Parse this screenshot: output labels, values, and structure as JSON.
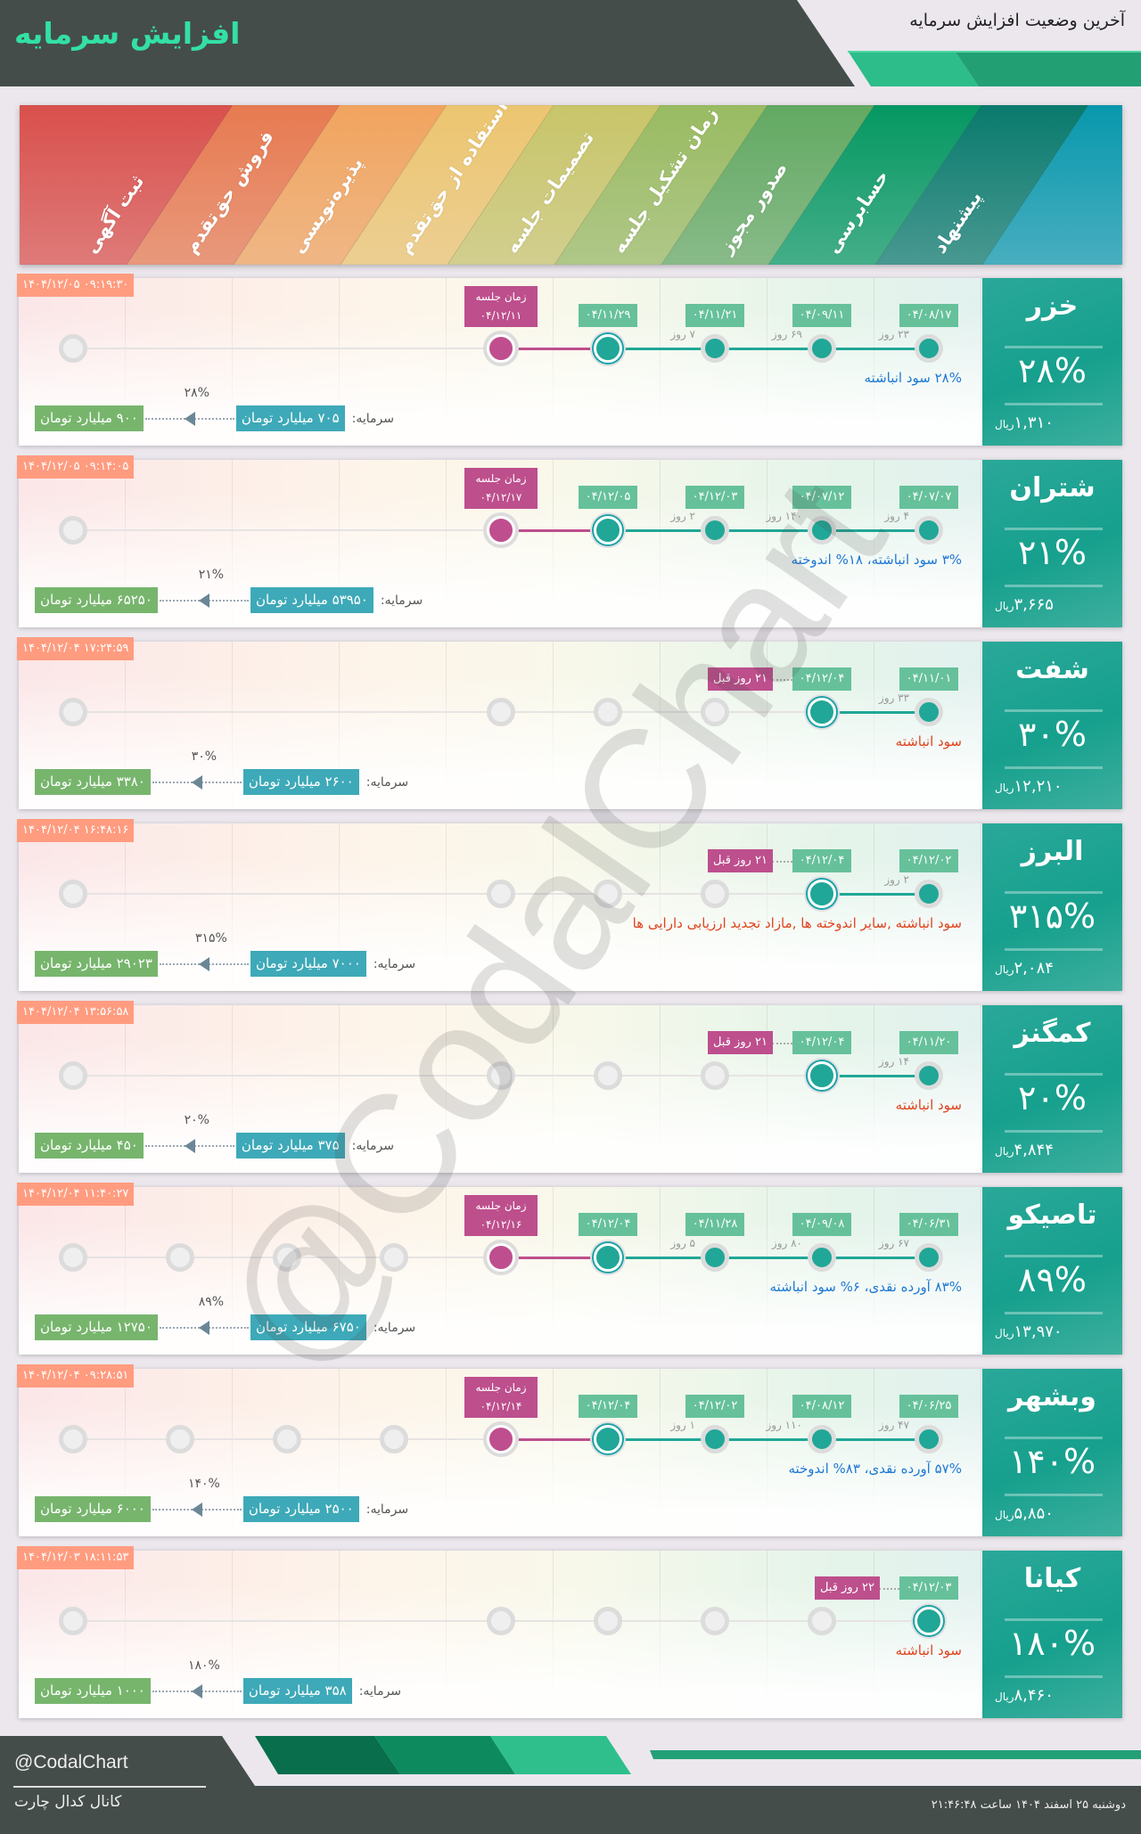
{
  "header": {
    "title": "افزایش سرمایه",
    "subtitle": "آخرین وضعیت افزایش سرمایه"
  },
  "stages": [
    {
      "label": "ثبت آگهی",
      "color": "#d9504c"
    },
    {
      "label": "فروش حق‌تقدم",
      "color": "#e77a50"
    },
    {
      "label": "پذیره‌نویسی",
      "color": "#f1a45e"
    },
    {
      "label": "استفاده از حق‌تقدم",
      "color": "#ecc56f"
    },
    {
      "label": "تصمیمات جلسه",
      "color": "#c8c56a"
    },
    {
      "label": "زمان تشکیل جلسه",
      "color": "#99bb61"
    },
    {
      "label": "صدور مجوز",
      "color": "#62a962"
    },
    {
      "label": "حسابرسی",
      "color": "#049862"
    },
    {
      "label": "پیشنهاد",
      "color": "#097a6d"
    },
    {
      "label": "",
      "color": "#0898ad"
    }
  ],
  "labels": {
    "capital": "سرمایه:",
    "rial": "ریال",
    "meeting": "زمان جلسه"
  },
  "colors": {
    "done": "#21a797",
    "meeting": "#bd4f8d",
    "desc_blue": "#1e78d4",
    "desc_red": "#e0441e",
    "timestamp": "#ff9c80"
  },
  "cards": [
    {
      "name": "خزر",
      "percent": "۲۸%",
      "price": "۱,۳۱۰",
      "timestamp": "۱۴۰۴/۱۲/۰۵ ۰۹:۱۹:۳۰",
      "nodes": [
        {
          "state": "done",
          "date": "۰۴/۰۸/۱۷",
          "gap": "۲۳ روز"
        },
        {
          "state": "done",
          "date": "۰۴/۰۹/۱۱",
          "gap": "۶۹ روز"
        },
        {
          "state": "done",
          "date": "۰۴/۱۱/۲۱",
          "gap": "۷ روز"
        },
        {
          "state": "current",
          "date": "۰۴/۱۱/۲۹"
        },
        {
          "state": "meeting",
          "date": "۰۴/۱۲/۱۱"
        },
        {
          "state": "none"
        },
        {
          "state": "none"
        },
        {
          "state": "none"
        },
        {
          "state": "pending"
        }
      ],
      "description": "۲۸% سود انباشته",
      "desc_color": "blue",
      "capital": "۷۰۵ میلیارد تومان",
      "increase": "۲۸%",
      "target": "۹۰۰ میلیارد تومان"
    },
    {
      "name": "شتران",
      "percent": "۲۱%",
      "price": "۳,۶۶۵",
      "timestamp": "۱۴۰۴/۱۲/۰۵ ۰۹:۱۴:۰۵",
      "nodes": [
        {
          "state": "done",
          "date": "۰۴/۰۷/۰۷",
          "gap": "۴ روز"
        },
        {
          "state": "done",
          "date": "۰۴/۰۷/۱۲",
          "gap": "۱۴۰ روز"
        },
        {
          "state": "done",
          "date": "۰۴/۱۲/۰۳",
          "gap": "۲ روز"
        },
        {
          "state": "current",
          "date": "۰۴/۱۲/۰۵"
        },
        {
          "state": "meeting",
          "date": "۰۴/۱۲/۱۷"
        },
        {
          "state": "none"
        },
        {
          "state": "none"
        },
        {
          "state": "none"
        },
        {
          "state": "pending"
        }
      ],
      "description": "۳% سود انباشته، ۱۸% اندوخته",
      "desc_color": "blue",
      "capital": "۵۳۹۵۰ میلیارد تومان",
      "increase": "۲۱%",
      "target": "۶۵۲۵۰ میلیارد تومان"
    },
    {
      "name": "شفت",
      "percent": "۳۰%",
      "price": "۱۲,۲۱۰",
      "timestamp": "۱۴۰۴/۱۲/۰۴ ۱۷:۲۴:۵۹",
      "nodes": [
        {
          "state": "done",
          "date": "۰۴/۱۱/۰۱",
          "gap": "۳۳ روز"
        },
        {
          "state": "current",
          "date": "۰۴/۱۲/۰۴",
          "badge": "۲۱ روز قبل"
        },
        {
          "state": "pending"
        },
        {
          "state": "pending"
        },
        {
          "state": "pending"
        },
        {
          "state": "none"
        },
        {
          "state": "none"
        },
        {
          "state": "none"
        },
        {
          "state": "pending"
        }
      ],
      "description": "سود انباشته",
      "desc_color": "red",
      "capital": "۲۶۰۰ میلیارد تومان",
      "increase": "۳۰%",
      "target": "۳۳۸۰ میلیارد تومان"
    },
    {
      "name": "البرز",
      "percent": "۳۱۵%",
      "price": "۲,۰۸۴",
      "timestamp": "۱۴۰۴/۱۲/۰۴ ۱۶:۴۸:۱۶",
      "nodes": [
        {
          "state": "done",
          "date": "۰۴/۱۲/۰۲",
          "gap": "۲ روز"
        },
        {
          "state": "current",
          "date": "۰۴/۱۲/۰۴",
          "badge": "۲۱ روز قبل"
        },
        {
          "state": "pending"
        },
        {
          "state": "pending"
        },
        {
          "state": "pending"
        },
        {
          "state": "none"
        },
        {
          "state": "none"
        },
        {
          "state": "none"
        },
        {
          "state": "pending"
        }
      ],
      "description": "سود انباشته ,سایر اندوخته ها ,مازاد تجدید ارزیابی دارایی ها",
      "desc_color": "red",
      "capital": "۷۰۰۰ میلیارد تومان",
      "increase": "۳۱۵%",
      "target": "۲۹۰۲۳ میلیارد تومان"
    },
    {
      "name": "کمگنز",
      "percent": "۲۰%",
      "price": "۴,۸۴۴",
      "timestamp": "۱۴۰۴/۱۲/۰۴ ۱۳:۵۶:۵۸",
      "nodes": [
        {
          "state": "done",
          "date": "۰۴/۱۱/۲۰",
          "gap": "۱۴ روز"
        },
        {
          "state": "current",
          "date": "۰۴/۱۲/۰۴",
          "badge": "۲۱ روز قبل"
        },
        {
          "state": "pending"
        },
        {
          "state": "pending"
        },
        {
          "state": "pending"
        },
        {
          "state": "none"
        },
        {
          "state": "none"
        },
        {
          "state": "none"
        },
        {
          "state": "pending"
        }
      ],
      "description": "سود انباشته",
      "desc_color": "red",
      "capital": "۳۷۵ میلیارد تومان",
      "increase": "۲۰%",
      "target": "۴۵۰ میلیارد تومان"
    },
    {
      "name": "تاصیکو",
      "percent": "۸۹%",
      "price": "۱۳,۹۷۰",
      "timestamp": "۱۴۰۴/۱۲/۰۴ ۱۱:۴۰:۲۷",
      "nodes": [
        {
          "state": "done",
          "date": "۰۴/۰۶/۳۱",
          "gap": "۶۷ روز"
        },
        {
          "state": "done",
          "date": "۰۴/۰۹/۰۸",
          "gap": "۸۰ روز"
        },
        {
          "state": "done",
          "date": "۰۴/۱۱/۲۸",
          "gap": "۵ روز"
        },
        {
          "state": "current",
          "date": "۰۴/۱۲/۰۴"
        },
        {
          "state": "meeting",
          "date": "۰۴/۱۲/۱۶"
        },
        {
          "state": "pending"
        },
        {
          "state": "pending"
        },
        {
          "state": "pending"
        },
        {
          "state": "pending"
        }
      ],
      "description": "۸۳% آورده نقدی، ۶% سود انباشته",
      "desc_color": "blue",
      "capital": "۶۷۵۰ میلیارد تومان",
      "increase": "۸۹%",
      "target": "۱۲۷۵۰ میلیارد تومان"
    },
    {
      "name": "وبشهر",
      "percent": "۱۴۰%",
      "price": "۵,۸۵۰",
      "timestamp": "۱۴۰۴/۱۲/۰۴ ۰۹:۲۸:۵۱",
      "nodes": [
        {
          "state": "done",
          "date": "۰۴/۰۶/۲۵",
          "gap": "۴۷ روز"
        },
        {
          "state": "done",
          "date": "۰۴/۰۸/۱۲",
          "gap": "۱۱۰ روز"
        },
        {
          "state": "done",
          "date": "۰۴/۱۲/۰۲",
          "gap": "۱ روز"
        },
        {
          "state": "current",
          "date": "۰۴/۱۲/۰۴"
        },
        {
          "state": "meeting",
          "date": "۰۴/۱۲/۱۴"
        },
        {
          "state": "pending"
        },
        {
          "state": "pending"
        },
        {
          "state": "pending"
        },
        {
          "state": "pending"
        }
      ],
      "description": "۵۷% آورده نقدی، ۸۳% اندوخته",
      "desc_color": "blue",
      "capital": "۲۵۰۰ میلیارد تومان",
      "increase": "۱۴۰%",
      "target": "۶۰۰۰ میلیارد تومان"
    },
    {
      "name": "کیانا",
      "percent": "۱۸۰%",
      "price": "۸,۴۶۰",
      "timestamp": "۱۴۰۴/۱۲/۰۳ ۱۸:۱۱:۵۳",
      "nodes": [
        {
          "state": "current",
          "date": "۰۴/۱۲/۰۳",
          "badge": "۲۲ روز قبل"
        },
        {
          "state": "pending"
        },
        {
          "state": "pending"
        },
        {
          "state": "pending"
        },
        {
          "state": "pending"
        },
        {
          "state": "none"
        },
        {
          "state": "none"
        },
        {
          "state": "none"
        },
        {
          "state": "pending"
        }
      ],
      "description": "سود انباشته",
      "desc_color": "red",
      "capital": "۳۵۸ میلیارد تومان",
      "increase": "۱۸۰%",
      "target": "۱۰۰۰ میلیارد تومان"
    }
  ],
  "watermark": "@CodalChart",
  "footer": {
    "handle": "@CodalChart",
    "channel": "کانال کدال چارت",
    "date": "دوشنبه ۲۵ اسفند ۱۴۰۴ ساعت ۲۱:۴۶:۴۸"
  }
}
